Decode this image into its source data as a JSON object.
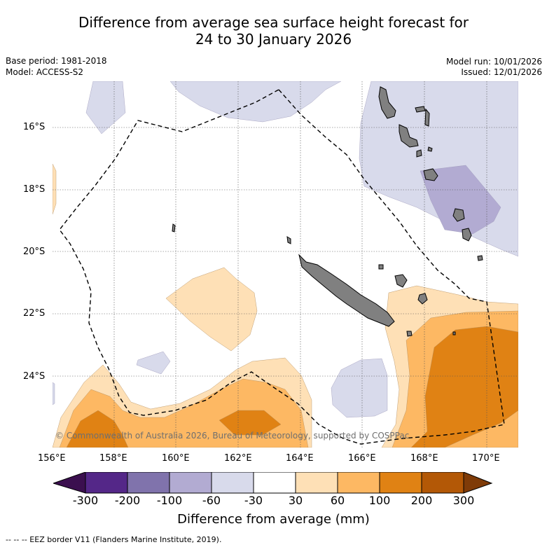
{
  "header": {
    "title_line1": "Difference from average sea surface height forecast for",
    "title_line2": "24 to 30 January 2026",
    "base_period": "Base period: 1981-2018",
    "model": "Model: ACCESS-S2",
    "model_run": "Model run: 10/01/2026",
    "issued": "Issued: 12/01/2026"
  },
  "axes": {
    "lat_ticks": [
      "16°S",
      "18°S",
      "20°S",
      "22°S",
      "24°S"
    ],
    "lon_ticks": [
      "156°E",
      "158°E",
      "160°E",
      "162°E",
      "164°E",
      "166°E",
      "168°E",
      "170°E"
    ]
  },
  "map": {
    "copyright": "© Commonwealth of Australia 2026, Bureau of Meteorology, supported by COSPPac",
    "colors": {
      "neg300": "#3b0f4f",
      "neg200": "#542788",
      "neg100": "#8073ac",
      "neg60": "#b2abd2",
      "neg30": "#d8daeb",
      "zero": "#ffffff",
      "pos30": "#fee0b6",
      "pos60": "#fdb863",
      "pos100": "#e08214",
      "pos200": "#b35806",
      "pos300": "#7f3b08",
      "land": "#808080"
    }
  },
  "colorbar": {
    "labels": [
      "-300",
      "-200",
      "-100",
      "-60",
      "-30",
      "30",
      "60",
      "100",
      "200",
      "300"
    ],
    "title": "Difference from average (mm)"
  },
  "footer": {
    "legend": "-- -- -- EEZ border V11 (Flanders Marine Institute, 2019)."
  }
}
